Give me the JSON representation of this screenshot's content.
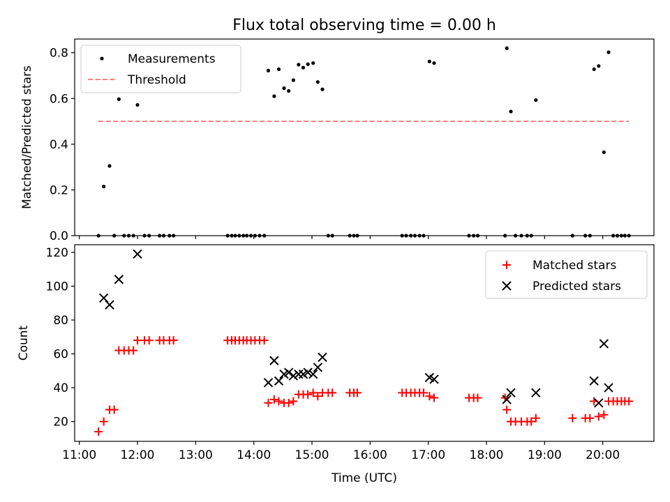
{
  "title": "Flux total observing time = 0.00 h",
  "chart_data": [
    {
      "type": "scatter",
      "ylabel": "Matched/Predicted stars",
      "xlim": [
        10.92,
        20.88
      ],
      "ylim": [
        0.0,
        0.86
      ],
      "yticks": [
        0.0,
        0.2,
        0.4,
        0.6,
        0.8
      ],
      "ytick_labels": [
        "0.0",
        "0.2",
        "0.4",
        "0.6",
        "0.8"
      ],
      "legend": {
        "placement": "top-left",
        "entries": [
          "Measurements",
          "Threshold"
        ]
      },
      "series": [
        {
          "name": "Measurements",
          "color": "#000000",
          "marker": "dot",
          "points": [
            [
              11.33,
              0.0
            ],
            [
              11.42,
              0.215
            ],
            [
              11.52,
              0.305
            ],
            [
              11.6,
              0.0
            ],
            [
              11.68,
              0.597
            ],
            [
              11.77,
              0.0
            ],
            [
              11.85,
              0.0
            ],
            [
              11.93,
              0.0
            ],
            [
              12.0,
              0.572
            ],
            [
              12.12,
              0.0
            ],
            [
              12.2,
              0.0
            ],
            [
              12.38,
              0.0
            ],
            [
              12.45,
              0.0
            ],
            [
              12.55,
              0.0
            ],
            [
              12.62,
              0.0
            ],
            [
              13.55,
              0.0
            ],
            [
              13.62,
              0.0
            ],
            [
              13.68,
              0.0
            ],
            [
              13.75,
              0.0
            ],
            [
              13.82,
              0.0
            ],
            [
              13.88,
              0.0
            ],
            [
              13.95,
              0.0
            ],
            [
              14.02,
              0.0
            ],
            [
              14.1,
              0.0
            ],
            [
              14.18,
              0.0
            ],
            [
              14.25,
              0.722
            ],
            [
              14.35,
              0.61
            ],
            [
              14.43,
              0.728
            ],
            [
              14.52,
              0.645
            ],
            [
              14.6,
              0.633
            ],
            [
              14.68,
              0.68
            ],
            [
              14.77,
              0.748
            ],
            [
              14.85,
              0.735
            ],
            [
              14.93,
              0.75
            ],
            [
              15.02,
              0.755
            ],
            [
              15.1,
              0.672
            ],
            [
              15.18,
              0.64
            ],
            [
              15.28,
              0.0
            ],
            [
              15.35,
              0.0
            ],
            [
              15.65,
              0.0
            ],
            [
              15.72,
              0.0
            ],
            [
              15.78,
              0.0
            ],
            [
              16.55,
              0.0
            ],
            [
              16.62,
              0.0
            ],
            [
              16.7,
              0.0
            ],
            [
              16.77,
              0.0
            ],
            [
              16.85,
              0.0
            ],
            [
              16.92,
              0.0
            ],
            [
              17.02,
              0.762
            ],
            [
              17.1,
              0.755
            ],
            [
              17.7,
              0.0
            ],
            [
              17.78,
              0.0
            ],
            [
              17.85,
              0.0
            ],
            [
              18.32,
              0.0
            ],
            [
              18.35,
              0.82
            ],
            [
              18.42,
              0.543
            ],
            [
              18.5,
              0.0
            ],
            [
              18.6,
              0.0
            ],
            [
              18.7,
              0.0
            ],
            [
              18.77,
              0.0
            ],
            [
              18.85,
              0.593
            ],
            [
              19.48,
              0.0
            ],
            [
              19.7,
              0.0
            ],
            [
              19.78,
              0.0
            ],
            [
              19.85,
              0.728
            ],
            [
              19.93,
              0.742
            ],
            [
              20.02,
              0.365
            ],
            [
              20.1,
              0.802
            ],
            [
              20.18,
              0.0
            ],
            [
              20.25,
              0.0
            ],
            [
              20.32,
              0.0
            ],
            [
              20.38,
              0.0
            ],
            [
              20.45,
              0.0
            ]
          ]
        },
        {
          "name": "Threshold",
          "color": "#ff7f7f",
          "style": "dashed",
          "points": [
            [
              11.33,
              0.5
            ],
            [
              20.45,
              0.5
            ]
          ]
        }
      ]
    },
    {
      "type": "scatter",
      "xlabel": "Time (UTC)",
      "ylabel": "Count",
      "xlim": [
        10.92,
        20.88
      ],
      "ylim": [
        8.3,
        124.5
      ],
      "xticks": [
        11,
        12,
        13,
        14,
        15,
        16,
        17,
        18,
        19,
        20
      ],
      "xtick_labels": [
        "11:00",
        "12:00",
        "13:00",
        "14:00",
        "15:00",
        "16:00",
        "17:00",
        "18:00",
        "19:00",
        "20:00"
      ],
      "yticks": [
        20,
        40,
        60,
        80,
        100,
        120
      ],
      "ytick_labels": [
        "20",
        "40",
        "60",
        "80",
        "100",
        "120"
      ],
      "legend": {
        "placement": "top-right",
        "entries": [
          "Matched stars",
          "Predicted stars"
        ]
      },
      "series": [
        {
          "name": "Matched stars",
          "color": "#ff0000",
          "marker": "plus",
          "points": [
            [
              11.33,
              14
            ],
            [
              11.42,
              20
            ],
            [
              11.52,
              27
            ],
            [
              11.6,
              27
            ],
            [
              11.68,
              62
            ],
            [
              11.77,
              62
            ],
            [
              11.85,
              62
            ],
            [
              11.93,
              62
            ],
            [
              12.0,
              68
            ],
            [
              12.12,
              68
            ],
            [
              12.2,
              68
            ],
            [
              12.38,
              68
            ],
            [
              12.45,
              68
            ],
            [
              12.55,
              68
            ],
            [
              12.62,
              68
            ],
            [
              13.55,
              68
            ],
            [
              13.62,
              68
            ],
            [
              13.68,
              68
            ],
            [
              13.75,
              68
            ],
            [
              13.82,
              68
            ],
            [
              13.88,
              68
            ],
            [
              13.95,
              68
            ],
            [
              14.02,
              68
            ],
            [
              14.1,
              68
            ],
            [
              14.18,
              68
            ],
            [
              14.25,
              31
            ],
            [
              14.35,
              33
            ],
            [
              14.43,
              32
            ],
            [
              14.52,
              31
            ],
            [
              14.6,
              31
            ],
            [
              14.68,
              32
            ],
            [
              14.77,
              36
            ],
            [
              14.85,
              36
            ],
            [
              14.93,
              36
            ],
            [
              15.02,
              37
            ],
            [
              15.1,
              35
            ],
            [
              15.18,
              37
            ],
            [
              15.28,
              37
            ],
            [
              15.35,
              37
            ],
            [
              15.65,
              37
            ],
            [
              15.72,
              37
            ],
            [
              15.78,
              37
            ],
            [
              16.55,
              37
            ],
            [
              16.62,
              37
            ],
            [
              16.7,
              37
            ],
            [
              16.77,
              37
            ],
            [
              16.85,
              37
            ],
            [
              16.92,
              37
            ],
            [
              17.02,
              35
            ],
            [
              17.1,
              34
            ],
            [
              17.7,
              34
            ],
            [
              17.78,
              34
            ],
            [
              17.85,
              34
            ],
            [
              18.32,
              34
            ],
            [
              18.35,
              27
            ],
            [
              18.42,
              20
            ],
            [
              18.5,
              20
            ],
            [
              18.6,
              20
            ],
            [
              18.7,
              20
            ],
            [
              18.77,
              20
            ],
            [
              18.85,
              22
            ],
            [
              19.48,
              22
            ],
            [
              19.7,
              22
            ],
            [
              19.78,
              22
            ],
            [
              19.85,
              32
            ],
            [
              19.93,
              23
            ],
            [
              20.02,
              24
            ],
            [
              20.1,
              32
            ],
            [
              20.18,
              32
            ],
            [
              20.25,
              32
            ],
            [
              20.32,
              32
            ],
            [
              20.38,
              32
            ],
            [
              20.45,
              32
            ]
          ]
        },
        {
          "name": "Predicted stars",
          "color": "#000000",
          "marker": "x",
          "points": [
            [
              11.42,
              93
            ],
            [
              11.52,
              89
            ],
            [
              11.68,
              104
            ],
            [
              12.0,
              119
            ],
            [
              14.25,
              43
            ],
            [
              14.35,
              56
            ],
            [
              14.43,
              44
            ],
            [
              14.52,
              48
            ],
            [
              14.6,
              49
            ],
            [
              14.68,
              47
            ],
            [
              14.77,
              48
            ],
            [
              14.85,
              48
            ],
            [
              14.93,
              49
            ],
            [
              15.02,
              48
            ],
            [
              15.1,
              52
            ],
            [
              15.18,
              58
            ],
            [
              17.02,
              46
            ],
            [
              17.1,
              45
            ],
            [
              18.35,
              33
            ],
            [
              18.42,
              37
            ],
            [
              18.85,
              37
            ],
            [
              19.85,
              44
            ],
            [
              19.93,
              31
            ],
            [
              20.02,
              66
            ],
            [
              20.1,
              40
            ]
          ]
        }
      ]
    }
  ]
}
